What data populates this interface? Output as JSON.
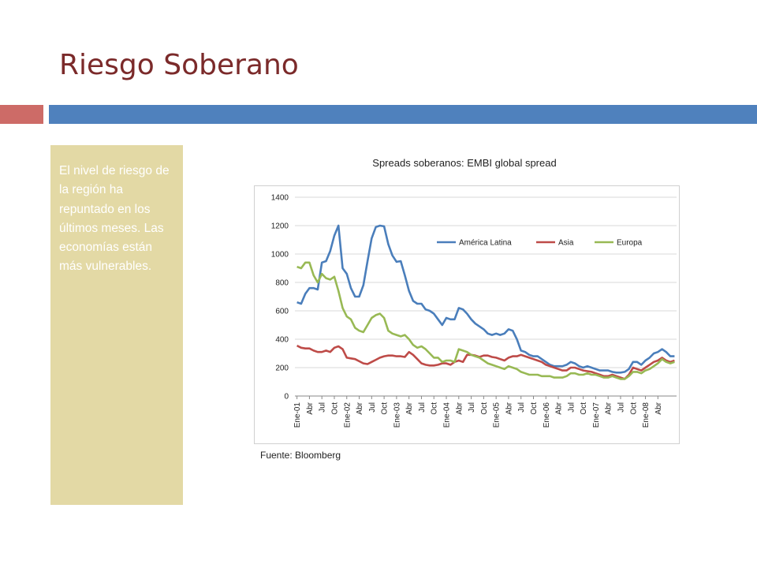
{
  "slide": {
    "title": "Riesgo Soberano",
    "accent_left": "#cd6b67",
    "accent_right": "#4f81bd",
    "title_color": "#7b2a2a",
    "sidebar_bg": "#e3d9a5",
    "sidebar_text": "El nivel de riesgo de la región ha repuntado en los últimos meses.  Las economías están más vulnerables."
  },
  "chart_data": {
    "type": "line",
    "title": "Spreads soberanos: EMBI global spread",
    "source": "Fuente: Bloomberg",
    "ylim": [
      0,
      1400
    ],
    "yticks": [
      0,
      200,
      400,
      600,
      800,
      1000,
      1200,
      1400
    ],
    "grid": true,
    "legend_position": "top-right",
    "xtick_labels": [
      "Ene-01",
      "Abr",
      "Jul",
      "Oct",
      "Ene-02",
      "Abr",
      "Jul",
      "Oct",
      "Ene-03",
      "Abr",
      "Jul",
      "Oct",
      "Ene-04",
      "Abr",
      "Jul",
      "Oct",
      "Ene-05",
      "Abr",
      "Jul",
      "Oct",
      "Ene-06",
      "Abr",
      "Jul",
      "Oct",
      "Ene-07",
      "Abr",
      "Jul",
      "Oct",
      "Ene-08",
      "Abr"
    ],
    "series": [
      {
        "name": "América Latina",
        "color": "#4a7ebb",
        "values": [
          660,
          650,
          720,
          760,
          760,
          750,
          940,
          950,
          1020,
          1130,
          1200,
          900,
          860,
          760,
          700,
          700,
          780,
          950,
          1110,
          1190,
          1200,
          1195,
          1070,
          990,
          945,
          950,
          850,
          740,
          670,
          650,
          650,
          610,
          600,
          580,
          540,
          500,
          550,
          540,
          540,
          620,
          610,
          580,
          540,
          510,
          490,
          470,
          440,
          430,
          440,
          430,
          440,
          470,
          460,
          400,
          320,
          310,
          290,
          280,
          280,
          260,
          240,
          220,
          210,
          210,
          210,
          220,
          240,
          230,
          210,
          200,
          210,
          200,
          190,
          180,
          180,
          180,
          170,
          165,
          165,
          170,
          190,
          240,
          240,
          220,
          250,
          270,
          300,
          310,
          330,
          310,
          280,
          280
        ]
      },
      {
        "name": "Asia",
        "color": "#be4b48",
        "values": [
          355,
          340,
          335,
          335,
          320,
          310,
          310,
          320,
          310,
          340,
          350,
          330,
          270,
          265,
          260,
          245,
          230,
          225,
          240,
          255,
          270,
          280,
          285,
          285,
          280,
          280,
          275,
          310,
          290,
          260,
          230,
          220,
          215,
          215,
          220,
          230,
          230,
          220,
          240,
          250,
          240,
          290,
          290,
          285,
          275,
          285,
          285,
          275,
          270,
          260,
          250,
          270,
          280,
          280,
          290,
          280,
          270,
          260,
          250,
          240,
          220,
          210,
          200,
          190,
          180,
          180,
          200,
          200,
          190,
          180,
          175,
          170,
          160,
          150,
          140,
          140,
          150,
          140,
          130,
          120,
          150,
          200,
          190,
          180,
          200,
          220,
          240,
          250,
          270,
          250,
          240,
          250
        ]
      },
      {
        "name": "Europa",
        "color": "#98b954",
        "values": [
          910,
          900,
          940,
          940,
          850,
          800,
          860,
          830,
          820,
          840,
          740,
          620,
          560,
          540,
          480,
          460,
          450,
          500,
          550,
          570,
          580,
          550,
          460,
          440,
          430,
          420,
          430,
          400,
          360,
          340,
          350,
          330,
          300,
          270,
          270,
          240,
          250,
          250,
          240,
          330,
          320,
          310,
          290,
          280,
          270,
          250,
          230,
          220,
          210,
          200,
          190,
          210,
          200,
          190,
          170,
          160,
          150,
          150,
          150,
          140,
          140,
          140,
          130,
          130,
          130,
          140,
          160,
          160,
          150,
          150,
          160,
          150,
          150,
          140,
          130,
          130,
          140,
          130,
          120,
          120,
          140,
          170,
          170,
          160,
          180,
          190,
          210,
          230,
          260,
          240,
          230,
          240
        ]
      }
    ]
  }
}
